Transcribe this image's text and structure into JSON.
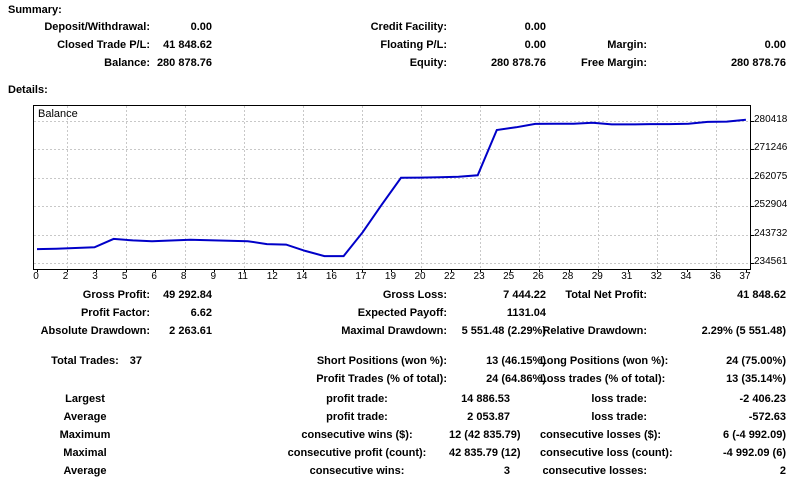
{
  "summary": {
    "title": "Summary:",
    "rows": [
      {
        "variant": "head",
        "cells": {
          "l1": "Deposit/Withdrawal:",
          "v1": "0.00",
          "l2": "Credit Facility:",
          "v2": "0.00",
          "l3": "",
          "v3": ""
        }
      },
      {
        "variant": "head",
        "cells": {
          "l1": "Closed Trade P/L:",
          "v1": "41 848.62",
          "l2": "Floating P/L:",
          "v2": "0.00",
          "l3": "Margin:",
          "v3": "0.00"
        }
      },
      {
        "variant": "head",
        "cells": {
          "l1": "Balance:",
          "v1": "280 878.76",
          "l2": "Equity:",
          "v2": "280 878.76",
          "l3": "Free Margin:",
          "v3": "280 878.76"
        }
      }
    ]
  },
  "details": {
    "title": "Details:"
  },
  "chart": {
    "legend": "Balance",
    "line_color": "#0000C8",
    "grid_color": "#c8c8c8",
    "border_color": "#000000"
  },
  "chart_data": {
    "type": "line",
    "title": "Balance",
    "xlabel": "",
    "ylabel": "",
    "legend_position": "top-left",
    "grid": "dashed",
    "xlim": [
      0,
      37
    ],
    "ylim": [
      232600,
      285300
    ],
    "y_tick_labels": [
      280418,
      271246,
      262075,
      252904,
      243732,
      234561
    ],
    "x_tick_labels": [
      "0",
      "2",
      "3",
      "5",
      "6",
      "8",
      "9",
      "11",
      "12",
      "14",
      "16",
      "17",
      "19",
      "20",
      "22",
      "23",
      "25",
      "26",
      "28",
      "29",
      "31",
      "32",
      "34",
      "36",
      "37"
    ],
    "x": [
      0,
      1,
      2,
      3,
      4,
      5,
      6,
      7,
      8,
      9,
      10,
      11,
      12,
      13,
      14,
      15,
      16,
      17,
      18,
      19,
      20,
      21,
      22,
      23,
      24,
      25,
      26,
      27,
      28,
      29,
      30,
      31,
      32,
      33,
      34,
      35,
      36,
      37
    ],
    "y": [
      239030,
      239150,
      239400,
      239600,
      242318,
      241850,
      241600,
      241800,
      242050,
      241900,
      241750,
      241600,
      240650,
      240500,
      238450,
      236767,
      236767,
      244500,
      253500,
      262075,
      262150,
      262250,
      262400,
      262900,
      277550,
      278400,
      279500,
      279550,
      279550,
      279900,
      279350,
      279350,
      279450,
      279450,
      279550,
      280150,
      280250,
      280879
    ]
  },
  "stats": {
    "rows": [
      {
        "variant": "head",
        "pad3": true,
        "cells": {
          "l1": "Gross Profit:",
          "v1": "49 292.84",
          "l2": "Gross Loss:",
          "v2": "7 444.22",
          "l3": "Total Net Profit:",
          "v3": "41 848.62"
        }
      },
      {
        "variant": "head",
        "cells": {
          "l1": "Profit Factor:",
          "v1": "6.62",
          "l2": "Expected Payoff:",
          "v2": "1131.04",
          "l3": "",
          "v3": ""
        }
      },
      {
        "variant": "head",
        "cells": {
          "l1": "Absolute Drawdown:",
          "v1": "2 263.61",
          "l2": "Maximal Drawdown:",
          "v2": "5 551.48 (2.29%)",
          "l3": "Relative Drawdown:",
          "v3": "2.29% (5 551.48)"
        }
      },
      {
        "variant": "mid",
        "cells": {
          "l1": "Total Trades:",
          "v1": "37",
          "l2": "Short Positions (won %):",
          "v2": "13 (46.15%)",
          "l3": "Long Positions (won %):",
          "v3": "24 (75.00%)"
        }
      },
      {
        "variant": "head",
        "cells": {
          "l1": "",
          "v1": "",
          "l2": "Profit Trades (% of total):",
          "v2": "24 (64.86%)",
          "l3": "Loss trades (% of total):",
          "v3": "13 (35.14%)"
        }
      },
      {
        "variant": "sub",
        "cells": {
          "l1": "Largest",
          "v1": "",
          "l2": "profit trade:",
          "v2": "14 886.53",
          "l3": "loss trade:",
          "v3": "-2 406.23"
        }
      },
      {
        "variant": "sub",
        "cells": {
          "l1": "Average",
          "v1": "",
          "l2": "profit trade:",
          "v2": "2 053.87",
          "l3": "loss trade:",
          "v3": "-572.63"
        }
      },
      {
        "variant": "sub",
        "cells": {
          "l1": "Maximum",
          "v1": "",
          "l2": "consecutive wins ($):",
          "v2": "12 (42 835.79)",
          "l3": "consecutive losses ($):",
          "v3": "6 (-4 992.09)"
        }
      },
      {
        "variant": "sub",
        "cells": {
          "l1": "Maximal",
          "v1": "",
          "l2": "consecutive profit (count):",
          "v2": "42 835.79 (12)",
          "l3": "consecutive loss (count):",
          "v3": "-4 992.09 (6)"
        }
      },
      {
        "variant": "sub",
        "cells": {
          "l1": "Average",
          "v1": "",
          "l2": "consecutive wins:",
          "v2": "3",
          "l3": "consecutive losses:",
          "v3": "2"
        }
      }
    ]
  }
}
